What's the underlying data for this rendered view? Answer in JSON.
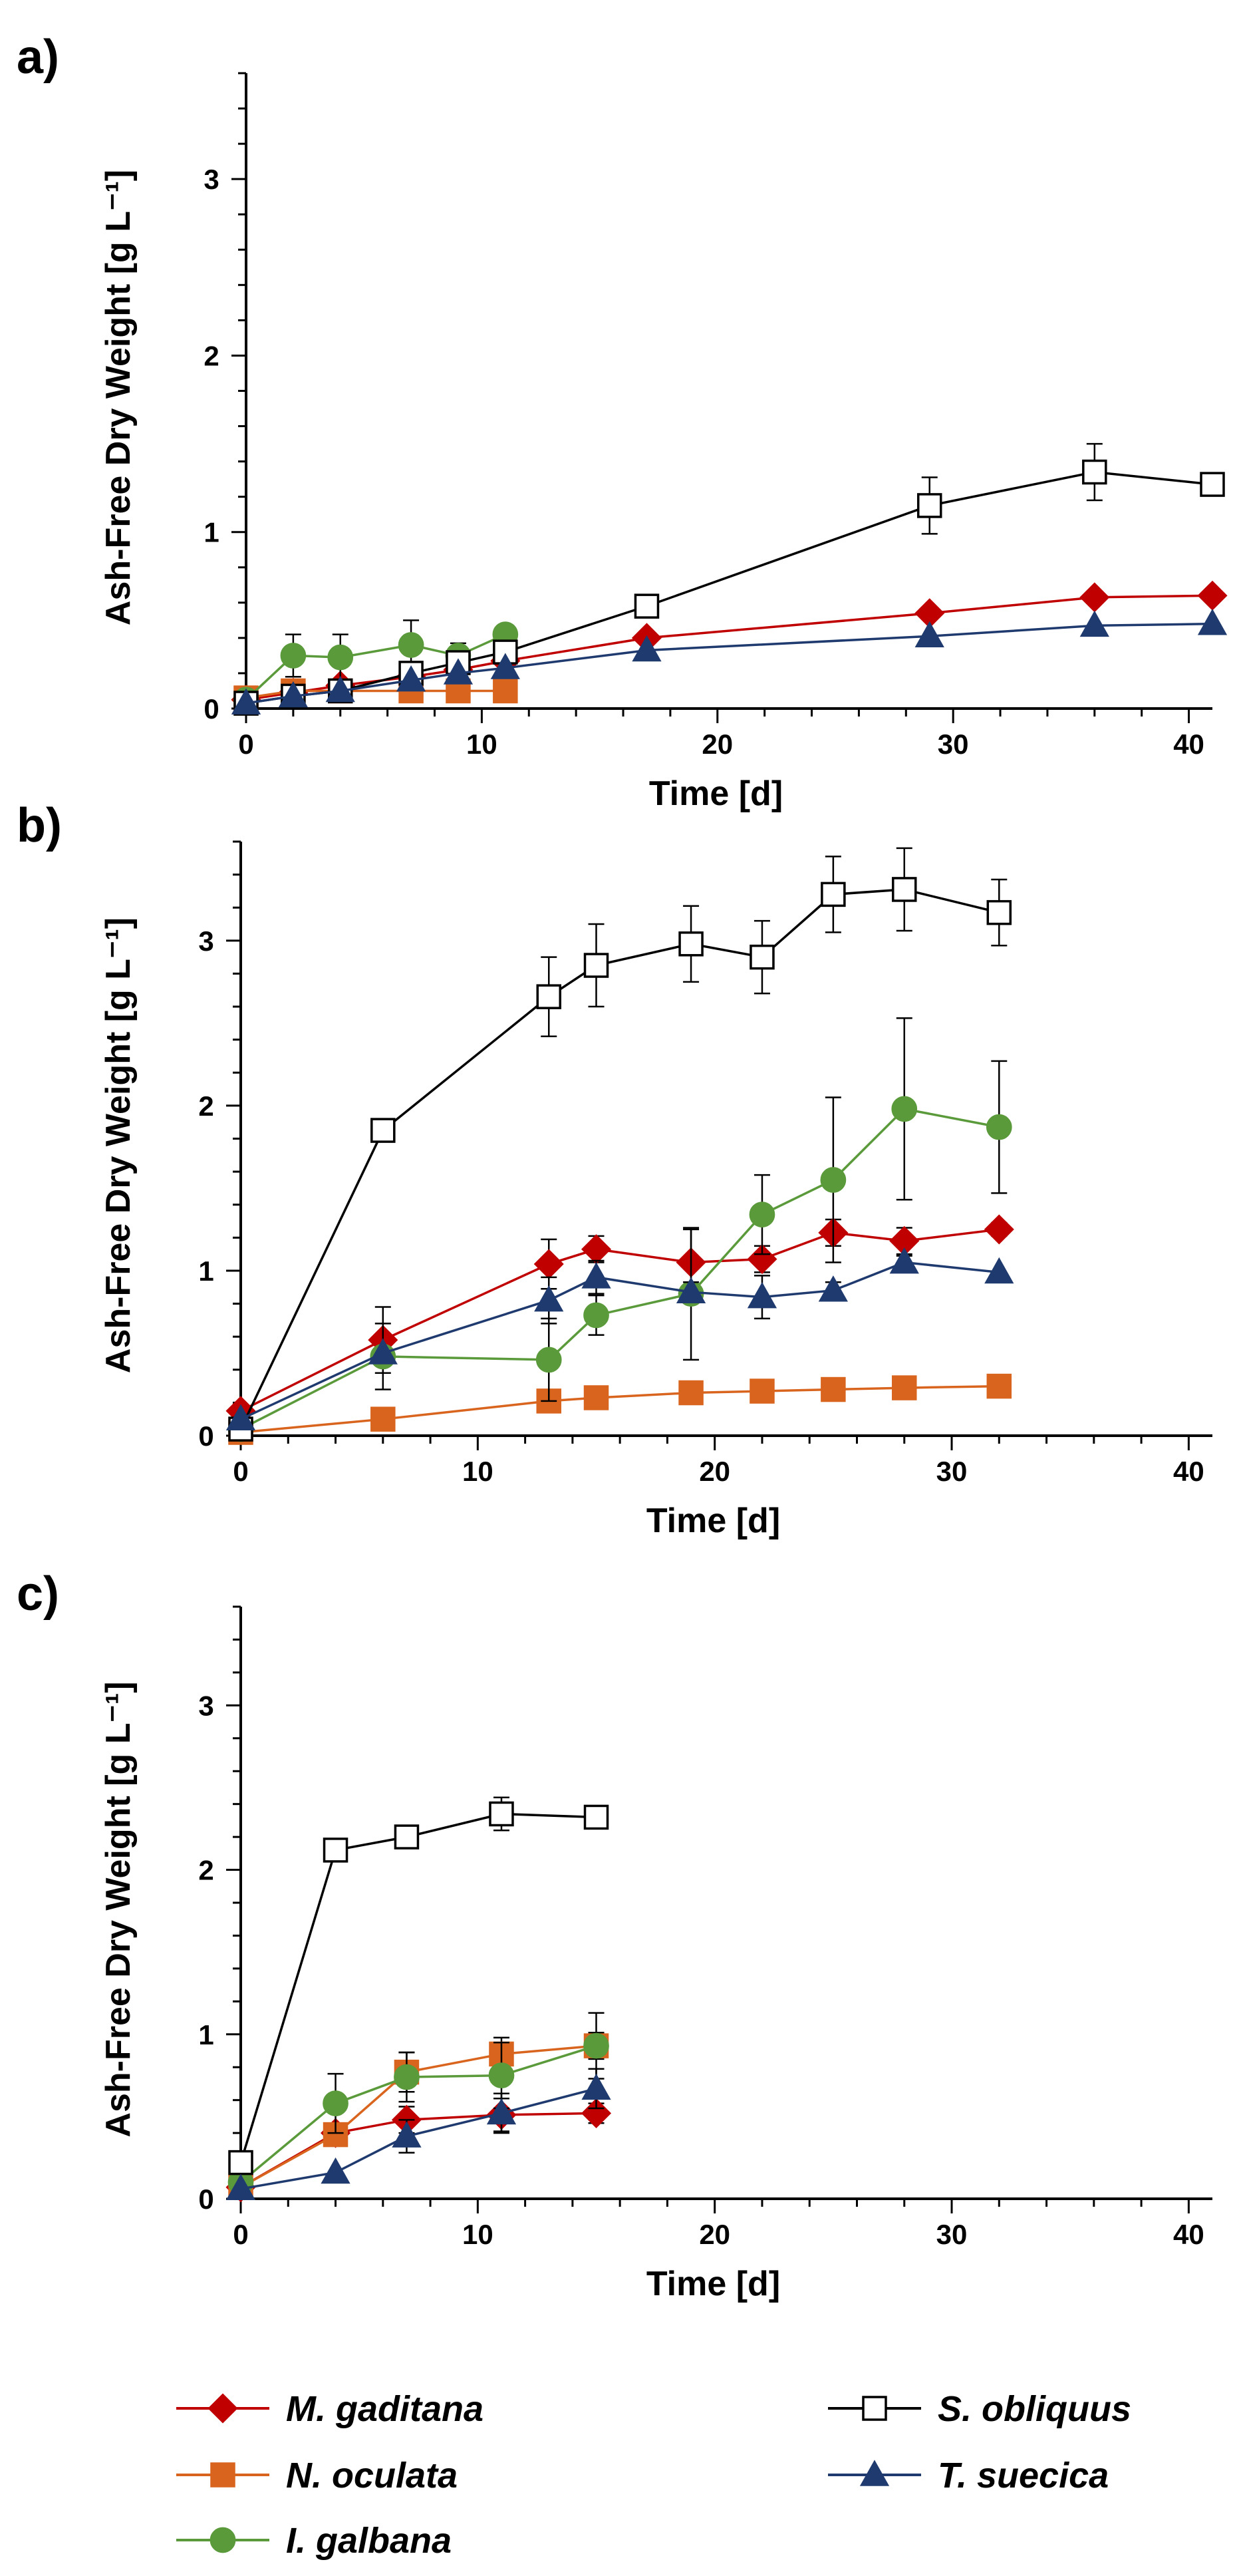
{
  "figure": {
    "legend": [
      {
        "name": "M. gaditana",
        "color": "#c00000",
        "marker": "diamond",
        "fill": "#c00000"
      },
      {
        "name": "N. oculata",
        "color": "#d8641e",
        "marker": "square",
        "fill": "#d8641e"
      },
      {
        "name": "I. galbana",
        "color": "#5a9a3a",
        "marker": "circle",
        "fill": "#5a9a3a"
      },
      {
        "name": "S. obliquus",
        "color": "#000000",
        "marker": "square",
        "fill": "#ffffff"
      },
      {
        "name": "T. suecica",
        "color": "#1f3a6e",
        "marker": "triangle",
        "fill": "#1f3a6e"
      }
    ]
  },
  "chart_data": [
    {
      "type": "line",
      "panel": "a)",
      "xlabel": "Time [d]",
      "ylabel": "Ash-Free Dry Weight [g L⁻¹]",
      "xlim": [
        0,
        41
      ],
      "ylim": [
        0,
        3.6
      ],
      "xticks": [
        0,
        10,
        20,
        30,
        40
      ],
      "yticks": [
        0,
        1,
        2,
        3
      ],
      "series": [
        {
          "name": "M. gaditana",
          "x": [
            0,
            2,
            4,
            7,
            9,
            11,
            17,
            29,
            36,
            41
          ],
          "y": [
            0.05,
            0.09,
            0.13,
            0.18,
            0.22,
            0.27,
            0.4,
            0.54,
            0.63,
            0.64
          ],
          "err": [
            0,
            0,
            0,
            0,
            0,
            0,
            0,
            0,
            0,
            0
          ]
        },
        {
          "name": "N. oculata",
          "x": [
            0,
            2,
            4,
            7,
            9,
            11
          ],
          "y": [
            0.06,
            0.1,
            0.1,
            0.1,
            0.1,
            0.1
          ],
          "err": [
            0,
            0,
            0,
            0,
            0,
            0
          ]
        },
        {
          "name": "I. galbana",
          "x": [
            0,
            2,
            4,
            7,
            9,
            11
          ],
          "y": [
            0.05,
            0.3,
            0.29,
            0.36,
            0.3,
            0.42
          ],
          "err": [
            0,
            0.12,
            0.13,
            0.14,
            0.07,
            0.05
          ]
        },
        {
          "name": "S. obliquus",
          "x": [
            0,
            2,
            4,
            7,
            9,
            11,
            17,
            29,
            36,
            41
          ],
          "y": [
            0.03,
            0.07,
            0.1,
            0.2,
            0.26,
            0.32,
            0.58,
            1.15,
            1.34,
            1.27
          ],
          "err": [
            0,
            0,
            0,
            0,
            0,
            0,
            0,
            0.16,
            0.16,
            0
          ]
        },
        {
          "name": "T. suecica",
          "x": [
            0,
            2,
            4,
            7,
            9,
            11,
            17,
            29,
            36,
            41
          ],
          "y": [
            0.03,
            0.07,
            0.1,
            0.16,
            0.2,
            0.23,
            0.33,
            0.41,
            0.47,
            0.48
          ],
          "err": [
            0,
            0,
            0,
            0,
            0,
            0,
            0,
            0,
            0,
            0
          ]
        }
      ]
    },
    {
      "type": "line",
      "panel": "b)",
      "xlabel": "Time [d]",
      "ylabel": "Ash-Free Dry Weight [g L⁻¹]",
      "xlim": [
        0,
        41
      ],
      "ylim": [
        0,
        3.6
      ],
      "xticks": [
        0,
        10,
        20,
        30,
        40
      ],
      "yticks": [
        0,
        1,
        2,
        3
      ],
      "series": [
        {
          "name": "M. gaditana",
          "x": [
            0,
            6,
            13,
            15,
            19,
            22,
            25,
            28,
            32
          ],
          "y": [
            0.15,
            0.58,
            1.04,
            1.13,
            1.05,
            1.07,
            1.23,
            1.18,
            1.25
          ],
          "err": [
            0,
            0.2,
            0.15,
            0.08,
            0.2,
            0.08,
            0.08,
            0.08,
            0.04
          ]
        },
        {
          "name": "N. oculata",
          "x": [
            0,
            6,
            13,
            15,
            19,
            22,
            25,
            28,
            32
          ],
          "y": [
            0.02,
            0.1,
            0.21,
            0.23,
            0.26,
            0.27,
            0.28,
            0.29,
            0.3
          ],
          "err": [
            0,
            0,
            0,
            0,
            0,
            0,
            0,
            0,
            0
          ]
        },
        {
          "name": "I. galbana",
          "x": [
            0,
            6,
            13,
            15,
            19,
            22,
            25,
            28,
            32
          ],
          "y": [
            0.04,
            0.48,
            0.46,
            0.73,
            0.86,
            1.34,
            1.55,
            1.98,
            1.87
          ],
          "err": [
            0,
            0.2,
            0.25,
            0.12,
            0.4,
            0.24,
            0.5,
            0.55,
            0.4
          ]
        },
        {
          "name": "S. obliquus",
          "x": [
            0,
            6,
            13,
            15,
            19,
            22,
            25,
            28,
            32
          ],
          "y": [
            0.04,
            1.85,
            2.66,
            2.85,
            2.98,
            2.9,
            3.28,
            3.31,
            3.17
          ],
          "err": [
            0,
            0,
            0.24,
            0.25,
            0.23,
            0.22,
            0.23,
            0.25,
            0.2
          ]
        },
        {
          "name": "T. suecica",
          "x": [
            0,
            6,
            13,
            15,
            19,
            22,
            25,
            28,
            32
          ],
          "y": [
            0.1,
            0.5,
            0.82,
            0.96,
            0.87,
            0.84,
            0.88,
            1.05,
            0.99
          ],
          "err": [
            0,
            0,
            0.14,
            0.1,
            0.06,
            0.13,
            0.05,
            0.04,
            0
          ]
        }
      ]
    },
    {
      "type": "line",
      "panel": "c)",
      "xlabel": "Time [d]",
      "ylabel": "Ash-Free Dry Weight [g L⁻¹]",
      "xlim": [
        0,
        41
      ],
      "ylim": [
        0,
        3.6
      ],
      "xticks": [
        0,
        10,
        20,
        30,
        40
      ],
      "yticks": [
        0,
        1,
        2,
        3
      ],
      "series": [
        {
          "name": "M. gaditana",
          "x": [
            0,
            4,
            7,
            11,
            15
          ],
          "y": [
            0.07,
            0.4,
            0.48,
            0.51,
            0.52
          ],
          "err": [
            0,
            0,
            0.08,
            0.1,
            0.06
          ]
        },
        {
          "name": "N. oculata",
          "x": [
            0,
            4,
            7,
            11,
            15
          ],
          "y": [
            0.07,
            0.39,
            0.77,
            0.88,
            0.93
          ],
          "err": [
            0,
            0.05,
            0.12,
            0.1,
            0.08
          ]
        },
        {
          "name": "I. galbana",
          "x": [
            0,
            4,
            7,
            11,
            15
          ],
          "y": [
            0.1,
            0.58,
            0.74,
            0.75,
            0.93
          ],
          "err": [
            0,
            0.18,
            0.15,
            0.2,
            0.2
          ]
        },
        {
          "name": "S. obliquus",
          "x": [
            0,
            4,
            7,
            11,
            15
          ],
          "y": [
            0.22,
            2.12,
            2.2,
            2.34,
            2.32
          ],
          "err": [
            0,
            0,
            0,
            0.1,
            0
          ]
        },
        {
          "name": "T. suecica",
          "x": [
            0,
            4,
            7,
            11,
            15
          ],
          "y": [
            0.06,
            0.16,
            0.38,
            0.52,
            0.67
          ],
          "err": [
            0,
            0,
            0.1,
            0.12,
            0.12
          ]
        }
      ]
    }
  ]
}
